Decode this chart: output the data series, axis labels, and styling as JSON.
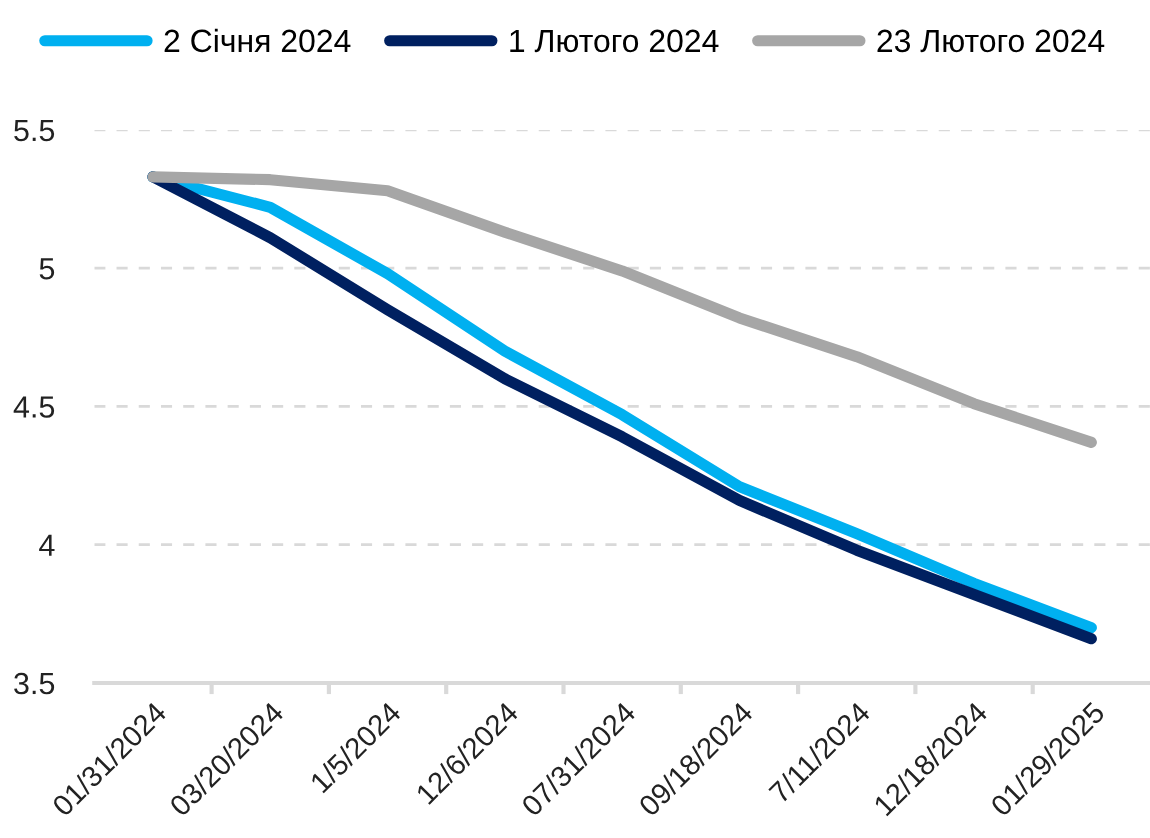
{
  "chart_data": {
    "type": "line",
    "categories": [
      "01/31/2024",
      "03/20/2024",
      "1/5/2024",
      "12/6/2024",
      "07/31/2024",
      "09/18/2024",
      "7/11/2024",
      "12/18/2024",
      "01/29/2025"
    ],
    "series": [
      {
        "name": "2 Січня 2024",
        "color": "#00b0f0",
        "values": [
          5.33,
          5.22,
          4.98,
          4.7,
          4.47,
          4.21,
          4.04,
          3.86,
          3.7
        ]
      },
      {
        "name": "1 Лютого 2024",
        "color": "#002060",
        "values": [
          5.33,
          5.11,
          4.85,
          4.6,
          4.39,
          4.16,
          3.98,
          3.82,
          3.66
        ]
      },
      {
        "name": "23 Лютого 2024",
        "color": "#a6a6a6",
        "values": [
          5.33,
          5.32,
          5.28,
          5.13,
          4.99,
          4.82,
          4.68,
          4.51,
          4.37
        ]
      }
    ],
    "ylim": [
      3.5,
      5.5
    ],
    "yticks": [
      3.5,
      4,
      4.5,
      5,
      5.5
    ],
    "grid": "y",
    "legend": "top",
    "marker": "none",
    "line_style": "solid"
  }
}
